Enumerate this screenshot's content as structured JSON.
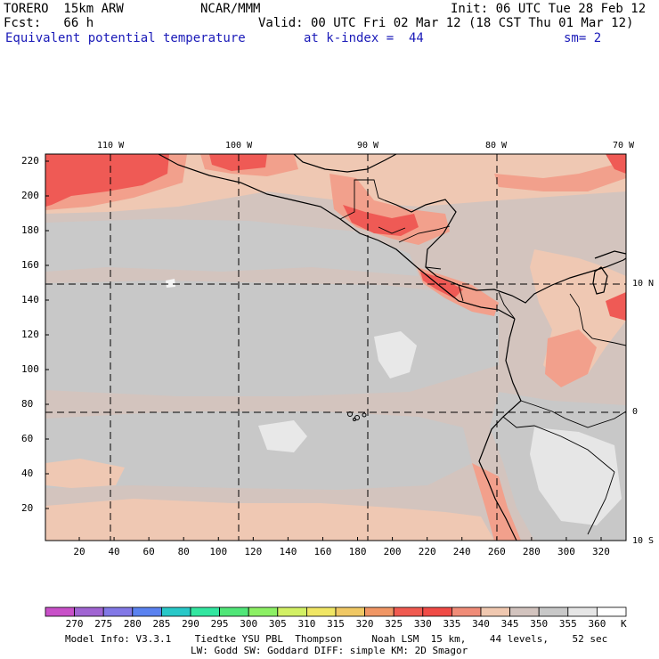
{
  "header": {
    "model": "TORERO  15km ARW",
    "org": "NCAR/MMM",
    "init": "Init: 06 UTC Tue 28 Feb 12",
    "fcst": "Fcst:   66 h",
    "valid": "Valid: 00 UTC Fri 02 Mar 12 (18 CST Thu 01 Mar 12)",
    "field": "Equivalent potential temperature",
    "level": "at k-index =  44",
    "smooth": "sm= 2"
  },
  "map": {
    "lon_labels": [
      "110 W",
      "100 W",
      "90 W",
      "80 W",
      "70 W"
    ],
    "lat_labels": [
      "10 N",
      "0",
      "10 S"
    ],
    "y_ticks": [
      "220",
      "200",
      "180",
      "160",
      "140",
      "120",
      "100",
      "80",
      "60",
      "40",
      "20"
    ],
    "x_ticks": [
      "20",
      "40",
      "60",
      "80",
      "100",
      "120",
      "140",
      "160",
      "180",
      "200",
      "220",
      "240",
      "260",
      "280",
      "300",
      "320"
    ]
  },
  "colorbar": {
    "labels": [
      "270",
      "275",
      "280",
      "285",
      "290",
      "295",
      "300",
      "305",
      "310",
      "315",
      "320",
      "325",
      "330",
      "335",
      "340",
      "345",
      "350",
      "355",
      "360"
    ],
    "unit": "K",
    "colors": [
      "#c850c8",
      "#a064d2",
      "#8278e6",
      "#5a82f0",
      "#28c8c8",
      "#32e6a0",
      "#50e678",
      "#8cf064",
      "#d2f064",
      "#f0e664",
      "#f0c864",
      "#f09664",
      "#f05a50",
      "#f04b46",
      "#f08c78",
      "#f0c8b0",
      "#d2c3be",
      "#c8c8c8",
      "#e6e6e6",
      "#ffffff"
    ]
  },
  "footer": {
    "line1": "Model Info: V3.3.1    Tiedtke YSU PBL  Thompson     Noah LSM  15 km,    44 levels,    52 sec",
    "line2": "LW: Godd SW: Goddard DIFF: simple KM: 2D Smagor"
  }
}
